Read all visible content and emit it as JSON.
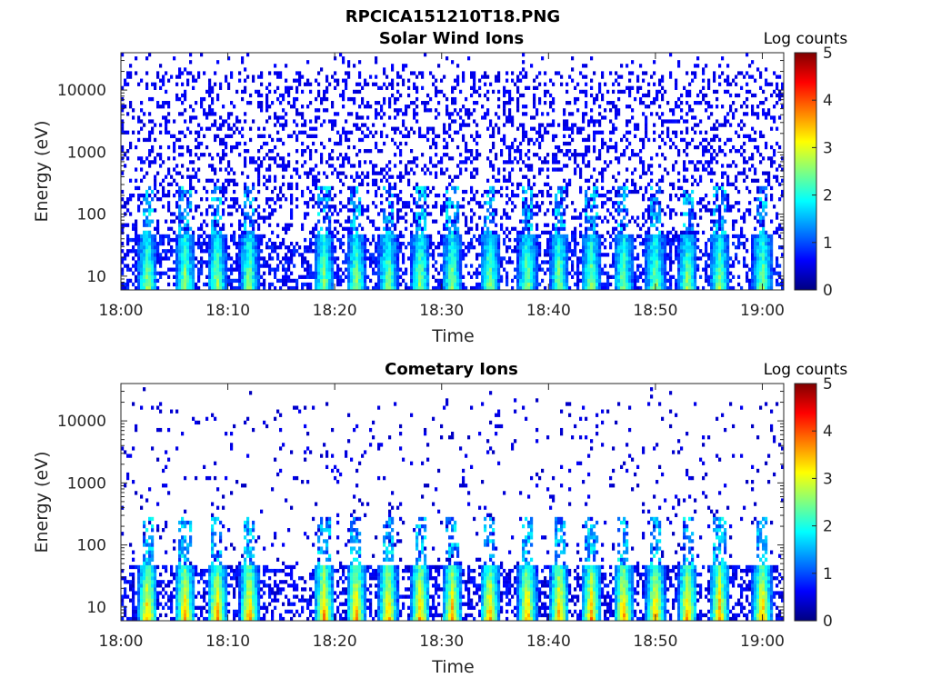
{
  "figure": {
    "filename_title": "RPCICA151210T18.PNG"
  },
  "chart_data": [
    {
      "type": "heatmap",
      "title": "Solar Wind Ions",
      "xlabel": "Time",
      "ylabel": "Energy (eV)",
      "x_tick_labels": [
        "18:00",
        "18:10",
        "18:20",
        "18:30",
        "18:40",
        "18:50",
        "19:00"
      ],
      "x_tick_minutes": [
        0,
        10,
        20,
        30,
        40,
        50,
        60
      ],
      "xlim_minutes": [
        0,
        62
      ],
      "y_scale": "log",
      "ylim": [
        6,
        40000
      ],
      "y_tick_labels": [
        "10",
        "100",
        "1000",
        "10000"
      ],
      "y_tick_values": [
        10,
        100,
        1000,
        10000
      ],
      "colorbar": {
        "label": "Log counts",
        "ticks": [
          "0",
          "1",
          "2",
          "3",
          "4",
          "5"
        ],
        "range": [
          0,
          5
        ],
        "colormap": "jet"
      },
      "bursts_minutes": [
        2.5,
        6.0,
        9.0,
        12.0,
        19.0,
        22.0,
        25.0,
        28.0,
        31.0,
        34.5,
        38.0,
        41.0,
        44.0,
        47.0,
        50.0,
        53.0,
        56.0,
        60.0
      ],
      "low_energy_peak_level": 2.2,
      "background_level": 0.4,
      "background_density": 0.28,
      "seed": 11
    },
    {
      "type": "heatmap",
      "title": "Cometary Ions",
      "xlabel": "Time",
      "ylabel": "Energy (eV)",
      "x_tick_labels": [
        "18:00",
        "18:10",
        "18:20",
        "18:30",
        "18:40",
        "18:50",
        "19:00"
      ],
      "x_tick_minutes": [
        0,
        10,
        20,
        30,
        40,
        50,
        60
      ],
      "xlim_minutes": [
        0,
        62
      ],
      "y_scale": "log",
      "ylim": [
        6,
        40000
      ],
      "y_tick_labels": [
        "10",
        "100",
        "1000",
        "10000"
      ],
      "y_tick_values": [
        10,
        100,
        1000,
        10000
      ],
      "colorbar": {
        "label": "Log counts",
        "ticks": [
          "0",
          "1",
          "2",
          "3",
          "4",
          "5"
        ],
        "range": [
          0,
          5
        ],
        "colormap": "jet"
      },
      "bursts_minutes": [
        2.5,
        6.0,
        9.0,
        12.0,
        19.0,
        22.0,
        25.0,
        28.0,
        31.0,
        34.5,
        38.0,
        41.0,
        44.0,
        47.0,
        50.0,
        53.0,
        56.0,
        60.0
      ],
      "low_energy_peak_level": 3.2,
      "background_level": 0.3,
      "background_density": 0.05,
      "seed": 29
    }
  ]
}
